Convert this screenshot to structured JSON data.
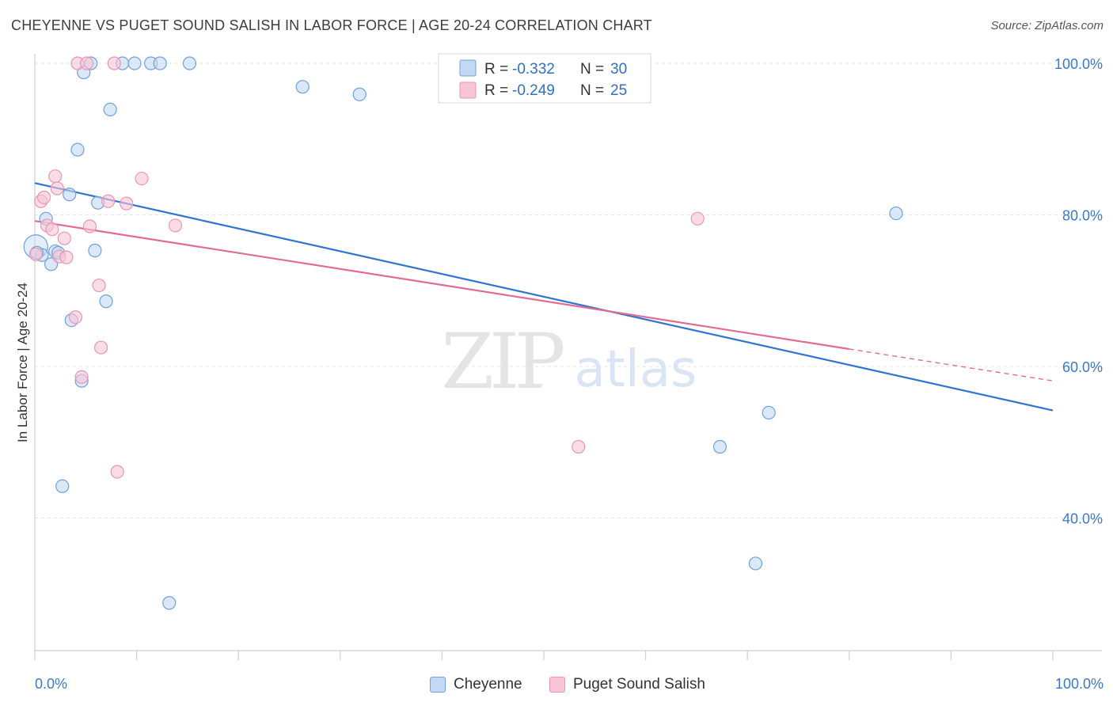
{
  "title": "CHEYENNE VS PUGET SOUND SALISH IN LABOR FORCE | AGE 20-24 CORRELATION CHART",
  "source": "Source: ZipAtlas.com",
  "watermark": {
    "zip": "ZIP",
    "atlas": "atlas"
  },
  "legend_box": {
    "row1": {
      "r_label": "R =",
      "r_value": "-0.332",
      "n_label": "N =",
      "n_value": "30"
    },
    "row2": {
      "r_label": "R =",
      "r_value": "-0.249",
      "n_label": "N =",
      "n_value": "25"
    }
  },
  "chart_data": {
    "type": "scatter",
    "title": "CHEYENNE VS PUGET SOUND SALISH IN LABOR FORCE | AGE 20-24 CORRELATION CHART",
    "xlabel": "",
    "ylabel": "In Labor Force | Age 20-24",
    "xlim": [
      0,
      100
    ],
    "ylim": [
      22,
      102
    ],
    "x_tick_labels": [
      "0.0%",
      "100.0%"
    ],
    "y_ticks": [
      40,
      60,
      80,
      100
    ],
    "y_tick_labels": [
      "40.0%",
      "60.0%",
      "80.0%",
      "100.0%"
    ],
    "grid": true,
    "legend_position": "bottom",
    "series": [
      {
        "name": "Cheyenne",
        "color": "#6fa0e0",
        "fill": "#c3d8f3",
        "line_color": "#2f74d0",
        "r": -0.332,
        "n": 30,
        "trend": {
          "x0": 0,
          "y0": 84.2,
          "x1": 100,
          "y1": 54.2
        },
        "points": [
          {
            "x": 0.1,
            "y": 75.8,
            "big": true
          },
          {
            "x": 0.7,
            "y": 74.7
          },
          {
            "x": 1.1,
            "y": 79.5
          },
          {
            "x": 1.6,
            "y": 73.5
          },
          {
            "x": 2.0,
            "y": 75.2
          },
          {
            "x": 2.3,
            "y": 75.0
          },
          {
            "x": 2.7,
            "y": 44.2
          },
          {
            "x": 3.4,
            "y": 82.7
          },
          {
            "x": 3.6,
            "y": 66.1
          },
          {
            "x": 4.2,
            "y": 88.6
          },
          {
            "x": 4.6,
            "y": 58.1
          },
          {
            "x": 4.8,
            "y": 98.8
          },
          {
            "x": 5.5,
            "y": 100.0
          },
          {
            "x": 5.9,
            "y": 75.3
          },
          {
            "x": 6.2,
            "y": 81.6
          },
          {
            "x": 7.0,
            "y": 68.6
          },
          {
            "x": 7.4,
            "y": 93.9
          },
          {
            "x": 8.6,
            "y": 100.0
          },
          {
            "x": 9.8,
            "y": 100.0
          },
          {
            "x": 11.4,
            "y": 100.0
          },
          {
            "x": 12.3,
            "y": 100.0
          },
          {
            "x": 15.2,
            "y": 100.0
          },
          {
            "x": 13.2,
            "y": 28.8
          },
          {
            "x": 26.3,
            "y": 96.9
          },
          {
            "x": 31.9,
            "y": 95.9
          },
          {
            "x": 67.3,
            "y": 49.4
          },
          {
            "x": 72.1,
            "y": 53.9
          },
          {
            "x": 70.8,
            "y": 34.0
          },
          {
            "x": 84.6,
            "y": 80.2
          },
          {
            "x": 0.2,
            "y": 75.0
          }
        ]
      },
      {
        "name": "Puget Sound Salish",
        "color": "#ec95b0",
        "fill": "#f7c5d5",
        "line_color": "#e06c96",
        "r": -0.249,
        "n": 25,
        "trend": {
          "x0": 0,
          "y0": 79.2,
          "x1": 80,
          "y1": 62.3
        },
        "trend_dashed": {
          "x0": 80,
          "y0": 62.3,
          "x1": 100,
          "y1": 58.1
        },
        "points": [
          {
            "x": 0.1,
            "y": 74.8
          },
          {
            "x": 0.6,
            "y": 81.8
          },
          {
            "x": 0.9,
            "y": 82.3
          },
          {
            "x": 1.2,
            "y": 78.6
          },
          {
            "x": 1.7,
            "y": 78.1
          },
          {
            "x": 2.0,
            "y": 85.1
          },
          {
            "x": 2.2,
            "y": 83.5
          },
          {
            "x": 2.4,
            "y": 74.5
          },
          {
            "x": 2.9,
            "y": 76.9
          },
          {
            "x": 3.1,
            "y": 74.4
          },
          {
            "x": 4.0,
            "y": 66.5
          },
          {
            "x": 4.6,
            "y": 58.6
          },
          {
            "x": 4.2,
            "y": 100.0
          },
          {
            "x": 5.1,
            "y": 100.0
          },
          {
            "x": 5.4,
            "y": 78.5
          },
          {
            "x": 6.3,
            "y": 70.7
          },
          {
            "x": 6.5,
            "y": 62.5
          },
          {
            "x": 7.2,
            "y": 81.8
          },
          {
            "x": 7.8,
            "y": 100.0
          },
          {
            "x": 8.1,
            "y": 46.1
          },
          {
            "x": 9.0,
            "y": 81.5
          },
          {
            "x": 10.5,
            "y": 84.8
          },
          {
            "x": 13.8,
            "y": 78.6
          },
          {
            "x": 53.4,
            "y": 49.4
          },
          {
            "x": 65.1,
            "y": 79.5
          }
        ]
      }
    ]
  }
}
